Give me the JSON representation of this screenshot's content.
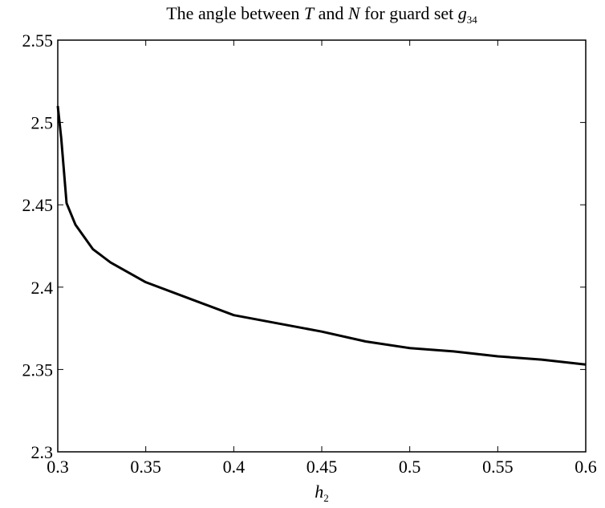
{
  "chart_data": {
    "type": "line",
    "title": [
      "The angle between ",
      "T",
      " and ",
      "N",
      " for guard set ",
      "g",
      "34"
    ],
    "xlabel": [
      "h",
      "2"
    ],
    "x": [
      0.3,
      0.302,
      0.305,
      0.31,
      0.32,
      0.33,
      0.35,
      0.375,
      0.4,
      0.425,
      0.45,
      0.475,
      0.5,
      0.525,
      0.55,
      0.575,
      0.6
    ],
    "series": [
      {
        "color": "#000000",
        "values": [
          2.51,
          2.49,
          2.451,
          2.438,
          2.423,
          2.415,
          2.403,
          2.393,
          2.383,
          2.378,
          2.373,
          2.367,
          2.363,
          2.361,
          2.358,
          2.356,
          2.353
        ]
      }
    ],
    "xlim": [
      0.3,
      0.6
    ],
    "xticks": [
      0.3,
      0.35,
      0.4,
      0.45,
      0.5,
      0.55,
      0.6
    ],
    "ylim": [
      2.3,
      2.55
    ],
    "yticks": [
      2.3,
      2.35,
      2.4,
      2.45,
      2.5,
      2.55
    ],
    "grid": false
  }
}
